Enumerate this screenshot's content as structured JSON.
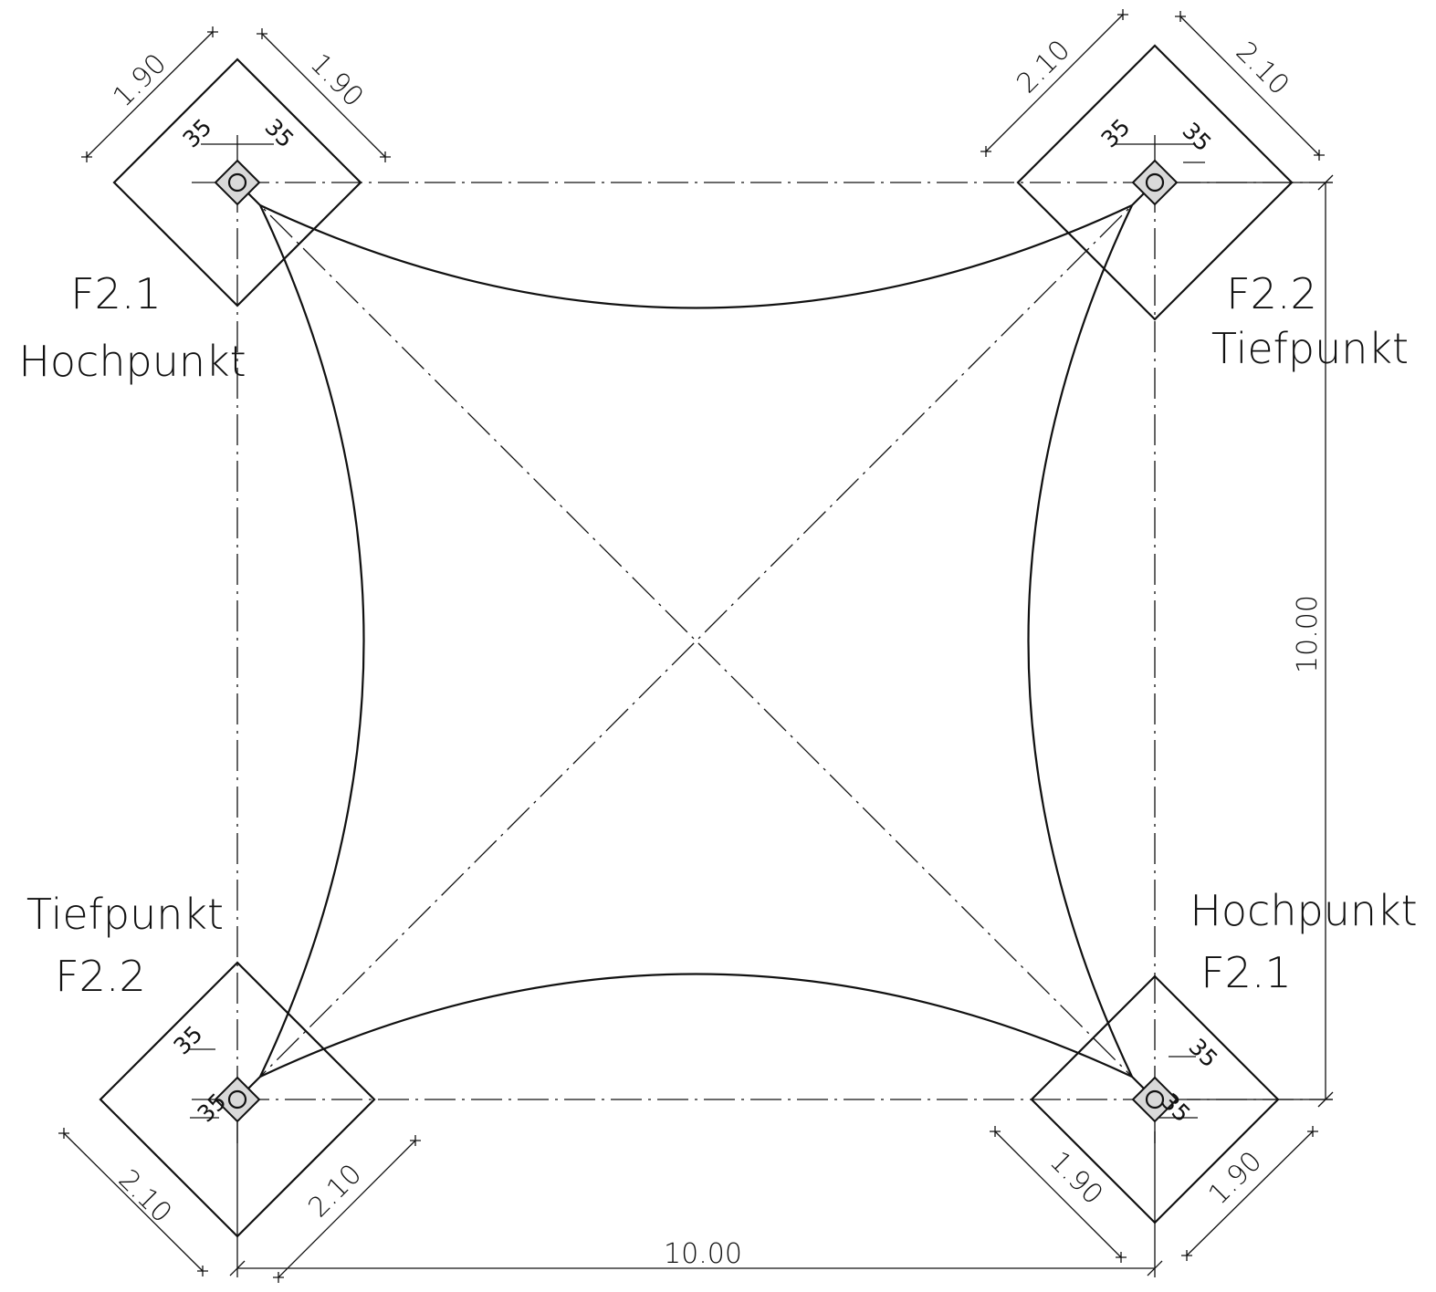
{
  "labels": {
    "top_left": {
      "line1": "F2.1",
      "line2": "Hochpunkt"
    },
    "top_right": {
      "line1": "F2.2",
      "line2": "Tiefpunkt"
    },
    "bottom_left": {
      "line1": "Tiefpunkt",
      "line2": "F2.2"
    },
    "bottom_right": {
      "line1": "Hochpunkt",
      "line2": "F2.1"
    }
  },
  "dimensions": {
    "overall_width": "10.00",
    "overall_height": "10.00",
    "tl_a": "1.90",
    "tl_b": "1.90",
    "tr_a": "2.10",
    "tr_b": "2.10",
    "bl_a": "2.10",
    "bl_b": "2.10",
    "br_a": "1.90",
    "br_b": "1.90",
    "offset": "35"
  }
}
